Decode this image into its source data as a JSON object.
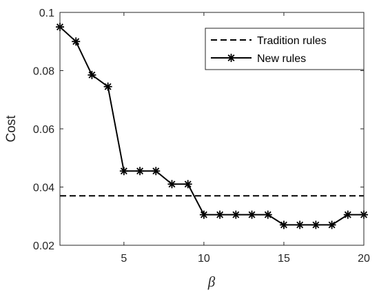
{
  "chart_data": {
    "type": "line",
    "xlabel": "β",
    "ylabel": "Cost",
    "xlim": [
      1,
      20
    ],
    "ylim": [
      0.02,
      0.1
    ],
    "xticks": [
      5,
      10,
      15,
      20
    ],
    "yticks": [
      0.02,
      0.04,
      0.06,
      0.08,
      0.1
    ],
    "xtick_labels": [
      "5",
      "10",
      "15",
      "20"
    ],
    "ytick_labels": [
      "0.02",
      "0.04",
      "0.06",
      "0.08",
      "0.1"
    ],
    "grid": false,
    "legend_position": "top-right",
    "series": [
      {
        "name": "Tradition rules",
        "style": "dashed",
        "color": "#000000",
        "x": [
          1,
          20
        ],
        "y": [
          0.037,
          0.037
        ]
      },
      {
        "name": "New rules",
        "style": "solid",
        "marker": "asterisk",
        "color": "#000000",
        "x": [
          1,
          2,
          3,
          4,
          5,
          6,
          7,
          8,
          9,
          10,
          11,
          12,
          13,
          14,
          15,
          16,
          17,
          18,
          19,
          20
        ],
        "y": [
          0.095,
          0.09,
          0.0785,
          0.0745,
          0.0455,
          0.0455,
          0.0455,
          0.041,
          0.041,
          0.0305,
          0.0305,
          0.0305,
          0.0305,
          0.0305,
          0.027,
          0.027,
          0.027,
          0.027,
          0.0305,
          0.0305
        ]
      }
    ]
  }
}
